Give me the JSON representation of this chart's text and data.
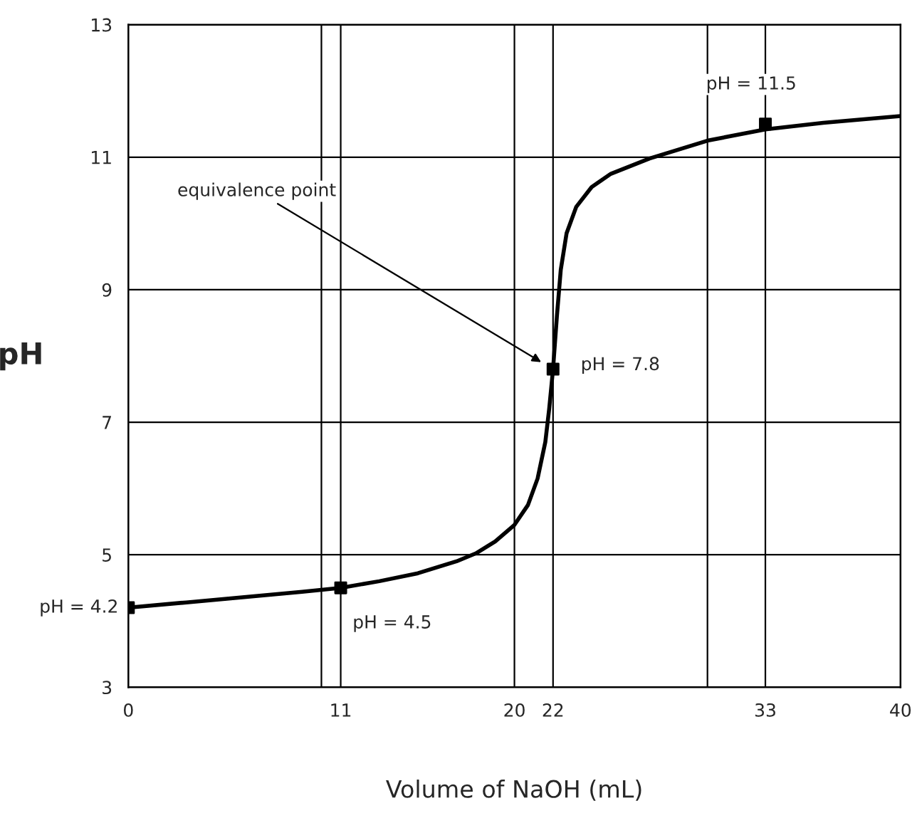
{
  "chart_data": {
    "type": "line",
    "xlabel": "Volume of NaOH (mL)",
    "ylabel": "pH",
    "xlim": [
      0,
      40
    ],
    "ylim": [
      3,
      13
    ],
    "xticks": [
      0,
      11,
      20,
      22,
      33,
      40
    ],
    "yticks": [
      3,
      5,
      7,
      9,
      11,
      13
    ],
    "grid": "y",
    "legend": false,
    "series": [
      {
        "color": "#000000",
        "marker": "none",
        "x": [
          0,
          3,
          6,
          9,
          11,
          13,
          15,
          17,
          18,
          19,
          20,
          20.7,
          21.2,
          21.6,
          21.8,
          22,
          22.2,
          22.4,
          22.7,
          23.2,
          24,
          25,
          27,
          30,
          33,
          36,
          40
        ],
        "values": [
          4.2,
          4.28,
          4.36,
          4.44,
          4.5,
          4.6,
          4.72,
          4.9,
          5.02,
          5.2,
          5.45,
          5.75,
          6.15,
          6.7,
          7.2,
          7.8,
          8.6,
          9.3,
          9.85,
          10.25,
          10.55,
          10.75,
          10.98,
          11.25,
          11.42,
          11.52,
          11.62
        ]
      },
      {
        "type": "scatter",
        "color": "#000000",
        "marker": "square",
        "x": [
          0,
          11,
          22,
          33
        ],
        "values": [
          4.2,
          4.5,
          7.8,
          11.5
        ]
      }
    ],
    "ref_lines": [
      {
        "axis": "x",
        "value": 10
      },
      {
        "axis": "x",
        "value": 20
      },
      {
        "axis": "x",
        "value": 30
      },
      {
        "axis": "x",
        "value": 11
      },
      {
        "axis": "x",
        "value": 22
      },
      {
        "axis": "x",
        "value": 33
      }
    ],
    "annotations": [
      {
        "text": "pH = 4.2",
        "x": 0,
        "y": 4.2
      },
      {
        "text": "pH = 4.5",
        "x": 11,
        "y": 4.5
      },
      {
        "text": "pH = 7.8",
        "x": 22,
        "y": 7.8
      },
      {
        "text": "pH = 11.5",
        "x": 33,
        "y": 11.5
      },
      "equivalence point"
    ]
  }
}
